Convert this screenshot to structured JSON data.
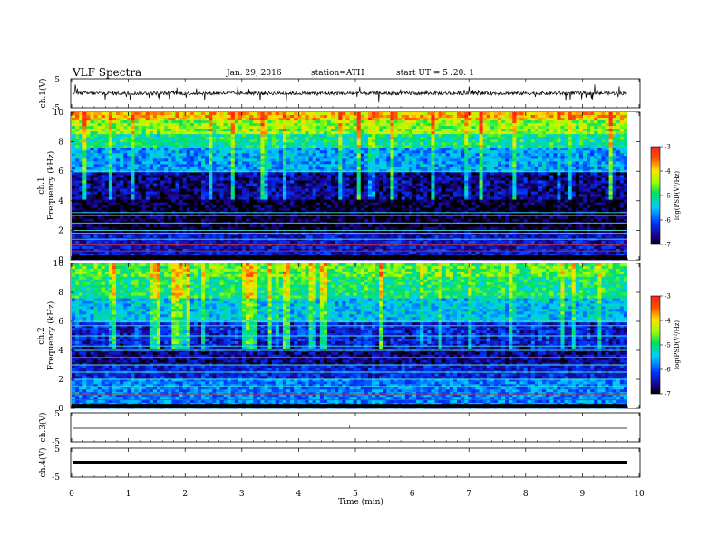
{
  "header": {
    "title": "VLF  Spectra",
    "date": "Jan. 29, 2016",
    "station": "station=ATH",
    "start": "start  UT =  5 :20: 1"
  },
  "chart_data": [
    {
      "type": "line",
      "panel": "ch1-waveform",
      "ylabel": "ch.1(V)",
      "ylim": [
        -5,
        5
      ],
      "yticks": [
        "5",
        "-5"
      ],
      "xlim": [
        0,
        10
      ],
      "level_v": 0,
      "spike_amplitude_v": 3
    },
    {
      "type": "heatmap",
      "panel": "ch1-spectrogram",
      "ylabel": "ch.1\nFrequency  (kHz)",
      "ylim": [
        0,
        10
      ],
      "yticks": [
        "0",
        "2",
        "4",
        "6",
        "8",
        "10"
      ],
      "xlim": [
        0,
        9.8
      ],
      "colorbar": {
        "label": "log(PSD(V²/Hz)",
        "range": [
          -7,
          -3
        ],
        "ticks": [
          "-7",
          "-6",
          "-5",
          "-4",
          "-3"
        ]
      },
      "band_means_logpsd": [
        {
          "f_khz": [
            0,
            1.8
          ],
          "value": -6.4
        },
        {
          "f_khz": [
            1.8,
            4
          ],
          "value": -6.9
        },
        {
          "f_khz": [
            4,
            6
          ],
          "value": -6.8
        },
        {
          "f_khz": [
            6,
            7.5
          ],
          "value": -5.8
        },
        {
          "f_khz": [
            7.5,
            8.5
          ],
          "value": -5.2
        },
        {
          "f_khz": [
            8.5,
            9.5
          ],
          "value": -4.6
        },
        {
          "f_khz": [
            9.5,
            10
          ],
          "value": -4.0
        }
      ],
      "narrowband_lines_khz": [
        0.6,
        1.0,
        1.4,
        1.8,
        2.0,
        2.5,
        3.0,
        3.2,
        6.0
      ]
    },
    {
      "type": "heatmap",
      "panel": "ch2-spectrogram",
      "ylabel": "ch.2\nFrequency  (kHz)",
      "ylim": [
        0,
        10
      ],
      "yticks": [
        "0",
        "2",
        "4",
        "6",
        "8",
        "10"
      ],
      "xlim": [
        0,
        9.8
      ],
      "colorbar": {
        "label": "log(PSD(V²/Hz)",
        "range": [
          -7,
          -3
        ],
        "ticks": [
          "-7",
          "-6",
          "-5",
          "-4",
          "-3"
        ]
      },
      "band_means_logpsd": [
        {
          "f_khz": [
            0,
            2
          ],
          "value": -5.8
        },
        {
          "f_khz": [
            2,
            3
          ],
          "value": -6.3
        },
        {
          "f_khz": [
            3,
            4.5
          ],
          "value": -6.6
        },
        {
          "f_khz": [
            4.5,
            6
          ],
          "value": -6.5
        },
        {
          "f_khz": [
            6,
            7.5
          ],
          "value": -5.6
        },
        {
          "f_khz": [
            7.5,
            9
          ],
          "value": -5.1
        },
        {
          "f_khz": [
            9,
            10
          ],
          "value": -4.8
        }
      ],
      "narrowband_lines_khz": [
        0.6,
        1.0,
        1.5,
        2.0,
        2.5,
        3.0,
        3.5,
        4.0,
        4.3,
        5.0,
        5.7,
        6.0
      ]
    },
    {
      "type": "line",
      "panel": "ch3-waveform",
      "ylabel": "ch.3(V)",
      "ylim": [
        -5,
        5
      ],
      "yticks": [
        "5",
        "-5"
      ],
      "xlim": [
        0,
        9.8
      ],
      "level_v": 0
    },
    {
      "type": "line",
      "panel": "ch4-waveform",
      "ylabel": "ch.4(V)",
      "ylim": [
        -5,
        5
      ],
      "yticks": [
        "5",
        "-5"
      ],
      "xlim": [
        0,
        9.8
      ],
      "level_v": 0
    }
  ],
  "xaxis": {
    "label": "Time  (min)",
    "ticks": [
      "0",
      "1",
      "2",
      "3",
      "4",
      "5",
      "6",
      "7",
      "8",
      "9",
      "10"
    ],
    "range": [
      0,
      10
    ]
  }
}
